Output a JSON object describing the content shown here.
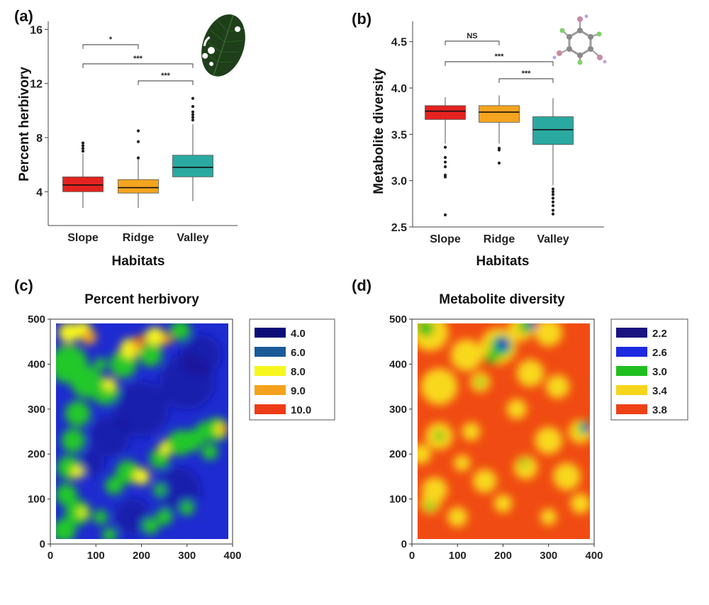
{
  "chart_data": [
    {
      "panel": "(a)",
      "type": "box",
      "title": "",
      "xlabel": "Habitats",
      "ylabel": "Percent herbivory",
      "ylim": [
        1.5,
        16.6
      ],
      "yticks": [
        4,
        8,
        12,
        16
      ],
      "categories": [
        "Slope",
        "Ridge",
        "Valley"
      ],
      "colors": [
        "#e42320",
        "#f4a41f",
        "#2aa9a0"
      ],
      "boxes": [
        {
          "name": "Slope",
          "whisker_low": 2.8,
          "q1": 4.0,
          "median": 4.5,
          "q3": 5.1,
          "whisker_high": 6.8,
          "outliers": [
            7.0,
            7.2,
            7.4,
            7.6
          ]
        },
        {
          "name": "Ridge",
          "whisker_low": 2.8,
          "q1": 3.9,
          "median": 4.3,
          "q3": 4.9,
          "whisker_high": 6.5,
          "outliers": [
            6.5,
            7.7,
            8.5
          ]
        },
        {
          "name": "Valley",
          "whisker_low": 3.3,
          "q1": 5.1,
          "median": 5.8,
          "q3": 6.7,
          "whisker_high": 9.0,
          "outliers": [
            9.3,
            9.5,
            9.7,
            9.9,
            10.3,
            10.9
          ]
        }
      ],
      "significance": [
        {
          "from": "Slope",
          "to": "Ridge",
          "label": "*"
        },
        {
          "from": "Slope",
          "to": "Valley",
          "label": "***"
        },
        {
          "from": "Ridge",
          "to": "Valley",
          "label": "***"
        }
      ]
    },
    {
      "panel": "(b)",
      "type": "box",
      "title": "",
      "xlabel": "Habitats",
      "ylabel": "Metabolite diversity",
      "ylim": [
        2.5,
        4.72
      ],
      "yticks": [
        2.5,
        3.0,
        3.5,
        4.0,
        4.5
      ],
      "categories": [
        "Slope",
        "Ridge",
        "Valley"
      ],
      "colors": [
        "#e42320",
        "#f4a41f",
        "#2aa9a0"
      ],
      "boxes": [
        {
          "name": "Slope",
          "whisker_low": 3.4,
          "q1": 3.66,
          "median": 3.75,
          "q3": 3.81,
          "whisker_high": 3.9,
          "outliers": [
            2.63,
            3.04,
            3.06,
            3.15,
            3.2,
            3.25,
            3.36
          ]
        },
        {
          "name": "Ridge",
          "whisker_low": 3.4,
          "q1": 3.63,
          "median": 3.74,
          "q3": 3.81,
          "whisker_high": 3.92,
          "outliers": [
            3.19,
            3.33,
            3.35
          ]
        },
        {
          "name": "Valley",
          "whisker_low": 2.95,
          "q1": 3.39,
          "median": 3.55,
          "q3": 3.69,
          "whisker_high": 3.89,
          "outliers": [
            2.64,
            2.68,
            2.73,
            2.77,
            2.81,
            2.85,
            2.88,
            2.91
          ]
        }
      ],
      "significance": [
        {
          "from": "Slope",
          "to": "Ridge",
          "label": "NS"
        },
        {
          "from": "Slope",
          "to": "Valley",
          "label": "***"
        },
        {
          "from": "Ridge",
          "to": "Valley",
          "label": "***"
        }
      ]
    },
    {
      "panel": "(c)",
      "type": "heatmap",
      "title": "Percent herbivory",
      "xlim": [
        0,
        400
      ],
      "ylim": [
        0,
        500
      ],
      "xticks": [
        0,
        100,
        200,
        300,
        400
      ],
      "yticks": [
        0,
        100,
        200,
        300,
        400,
        500
      ],
      "extent": {
        "x": [
          10,
          385
        ],
        "y": [
          10,
          490
        ]
      },
      "background": "#1e2bd0",
      "legend": [
        {
          "label": "4.0",
          "color": "#0d0d78"
        },
        {
          "label": "6.0",
          "color": "#1a5a99"
        },
        {
          "label": "8.0",
          "color": "#f6f71e"
        },
        {
          "label": "9.0",
          "color": "#f4a11d"
        },
        {
          "label": "10.0",
          "color": "#ee3c16"
        }
      ],
      "blobs": [
        {
          "x": 40,
          "y": 400,
          "r": 42,
          "v": "green"
        },
        {
          "x": 40,
          "y": 470,
          "r": 22,
          "v": "yellow"
        },
        {
          "x": 70,
          "y": 475,
          "r": 20,
          "v": "yellow"
        },
        {
          "x": 85,
          "y": 460,
          "r": 16,
          "v": "orange"
        },
        {
          "x": 80,
          "y": 360,
          "r": 35,
          "v": "green"
        },
        {
          "x": 120,
          "y": 340,
          "r": 30,
          "v": "green"
        },
        {
          "x": 130,
          "y": 355,
          "r": 14,
          "v": "yellow"
        },
        {
          "x": 160,
          "y": 400,
          "r": 30,
          "v": "green"
        },
        {
          "x": 175,
          "y": 435,
          "r": 22,
          "v": "yellow"
        },
        {
          "x": 190,
          "y": 445,
          "r": 14,
          "v": "orange"
        },
        {
          "x": 200,
          "y": 455,
          "r": 10,
          "v": "red"
        },
        {
          "x": 230,
          "y": 460,
          "r": 22,
          "v": "yellow"
        },
        {
          "x": 255,
          "y": 455,
          "r": 12,
          "v": "orange"
        },
        {
          "x": 220,
          "y": 420,
          "r": 25,
          "v": "green"
        },
        {
          "x": 285,
          "y": 475,
          "r": 22,
          "v": "green"
        },
        {
          "x": 60,
          "y": 290,
          "r": 28,
          "v": "green"
        },
        {
          "x": 50,
          "y": 230,
          "r": 26,
          "v": "green"
        },
        {
          "x": 40,
          "y": 170,
          "r": 26,
          "v": "green"
        },
        {
          "x": 60,
          "y": 160,
          "r": 14,
          "v": "yellow"
        },
        {
          "x": 35,
          "y": 110,
          "r": 24,
          "v": "green"
        },
        {
          "x": 60,
          "y": 70,
          "r": 28,
          "v": "green"
        },
        {
          "x": 70,
          "y": 70,
          "r": 10,
          "v": "yellow"
        },
        {
          "x": 30,
          "y": 30,
          "r": 26,
          "v": "green"
        },
        {
          "x": 140,
          "y": 130,
          "r": 20,
          "v": "green"
        },
        {
          "x": 170,
          "y": 160,
          "r": 26,
          "v": "green"
        },
        {
          "x": 200,
          "y": 150,
          "r": 18,
          "v": "yellow"
        },
        {
          "x": 240,
          "y": 190,
          "r": 22,
          "v": "green"
        },
        {
          "x": 255,
          "y": 215,
          "r": 16,
          "v": "yellow"
        },
        {
          "x": 285,
          "y": 225,
          "r": 28,
          "v": "green"
        },
        {
          "x": 310,
          "y": 230,
          "r": 24,
          "v": "green"
        },
        {
          "x": 340,
          "y": 250,
          "r": 22,
          "v": "green"
        },
        {
          "x": 365,
          "y": 255,
          "r": 26,
          "v": "green"
        },
        {
          "x": 375,
          "y": 255,
          "r": 14,
          "v": "yellow"
        },
        {
          "x": 380,
          "y": 255,
          "r": 9,
          "v": "orange"
        },
        {
          "x": 383,
          "y": 252,
          "r": 6,
          "v": "red"
        },
        {
          "x": 350,
          "y": 205,
          "r": 18,
          "v": "green"
        },
        {
          "x": 110,
          "y": 60,
          "r": 16,
          "v": "green"
        },
        {
          "x": 250,
          "y": 60,
          "r": 18,
          "v": "green"
        },
        {
          "x": 300,
          "y": 80,
          "r": 16,
          "v": "green"
        },
        {
          "x": 220,
          "y": 40,
          "r": 18,
          "v": "green"
        },
        {
          "x": 240,
          "y": 120,
          "r": 14,
          "v": "green"
        },
        {
          "x": 130,
          "y": 20,
          "r": 16,
          "v": "green"
        },
        {
          "x": 110,
          "y": 400,
          "r": 14,
          "v": "green"
        }
      ],
      "dark": [
        {
          "x": 200,
          "y": 300,
          "r": 60
        },
        {
          "x": 300,
          "y": 360,
          "r": 60
        },
        {
          "x": 130,
          "y": 240,
          "r": 45
        },
        {
          "x": 280,
          "y": 120,
          "r": 50
        },
        {
          "x": 180,
          "y": 60,
          "r": 40
        },
        {
          "x": 330,
          "y": 420,
          "r": 45
        },
        {
          "x": 90,
          "y": 180,
          "r": 28
        }
      ]
    },
    {
      "panel": "(d)",
      "type": "heatmap",
      "title": "Metabolite diversity",
      "xlim": [
        0,
        400
      ],
      "ylim": [
        0,
        500
      ],
      "xticks": [
        0,
        100,
        200,
        300,
        400
      ],
      "yticks": [
        0,
        100,
        200,
        300,
        400,
        500
      ],
      "extent": {
        "x": [
          10,
          385
        ],
        "y": [
          10,
          490
        ]
      },
      "background": "#f04b12",
      "legend": [
        {
          "label": "2.2",
          "color": "#1a1480"
        },
        {
          "label": "2.6",
          "color": "#1c2ae0"
        },
        {
          "label": "3.0",
          "color": "#1fbf1f"
        },
        {
          "label": "3.4",
          "color": "#f5d61c"
        },
        {
          "label": "3.8",
          "color": "#ee4116"
        }
      ],
      "blobs": [
        {
          "x": 40,
          "y": 470,
          "r": 40,
          "v": "yellow"
        },
        {
          "x": 30,
          "y": 480,
          "r": 18,
          "v": "green"
        },
        {
          "x": 60,
          "y": 350,
          "r": 40,
          "v": "yellow"
        },
        {
          "x": 120,
          "y": 420,
          "r": 35,
          "v": "yellow"
        },
        {
          "x": 190,
          "y": 440,
          "r": 40,
          "v": "yellow"
        },
        {
          "x": 195,
          "y": 440,
          "r": 24,
          "v": "green"
        },
        {
          "x": 200,
          "y": 445,
          "r": 14,
          "v": "blue"
        },
        {
          "x": 203,
          "y": 448,
          "r": 7,
          "v": "navy"
        },
        {
          "x": 175,
          "y": 415,
          "r": 14,
          "v": "green"
        },
        {
          "x": 240,
          "y": 480,
          "r": 28,
          "v": "yellow"
        },
        {
          "x": 250,
          "y": 485,
          "r": 16,
          "v": "green"
        },
        {
          "x": 265,
          "y": 488,
          "r": 9,
          "v": "blue"
        },
        {
          "x": 300,
          "y": 470,
          "r": 30,
          "v": "yellow"
        },
        {
          "x": 150,
          "y": 360,
          "r": 22,
          "v": "yellow"
        },
        {
          "x": 150,
          "y": 360,
          "r": 8,
          "v": "green"
        },
        {
          "x": 60,
          "y": 240,
          "r": 30,
          "v": "yellow"
        },
        {
          "x": 60,
          "y": 240,
          "r": 10,
          "v": "green"
        },
        {
          "x": 50,
          "y": 120,
          "r": 28,
          "v": "yellow"
        },
        {
          "x": 40,
          "y": 90,
          "r": 22,
          "v": "yellow"
        },
        {
          "x": 40,
          "y": 85,
          "r": 9,
          "v": "green"
        },
        {
          "x": 100,
          "y": 60,
          "r": 22,
          "v": "yellow"
        },
        {
          "x": 160,
          "y": 140,
          "r": 26,
          "v": "yellow"
        },
        {
          "x": 250,
          "y": 170,
          "r": 26,
          "v": "yellow"
        },
        {
          "x": 245,
          "y": 180,
          "r": 8,
          "v": "green"
        },
        {
          "x": 300,
          "y": 230,
          "r": 30,
          "v": "yellow"
        },
        {
          "x": 370,
          "y": 250,
          "r": 26,
          "v": "yellow"
        },
        {
          "x": 378,
          "y": 258,
          "r": 14,
          "v": "green"
        },
        {
          "x": 383,
          "y": 258,
          "r": 8,
          "v": "blue"
        },
        {
          "x": 340,
          "y": 150,
          "r": 30,
          "v": "yellow"
        },
        {
          "x": 370,
          "y": 90,
          "r": 22,
          "v": "yellow"
        },
        {
          "x": 260,
          "y": 380,
          "r": 30,
          "v": "yellow"
        },
        {
          "x": 320,
          "y": 350,
          "r": 26,
          "v": "yellow"
        },
        {
          "x": 230,
          "y": 300,
          "r": 22,
          "v": "yellow"
        },
        {
          "x": 130,
          "y": 250,
          "r": 20,
          "v": "yellow"
        },
        {
          "x": 200,
          "y": 90,
          "r": 20,
          "v": "yellow"
        },
        {
          "x": 300,
          "y": 60,
          "r": 18,
          "v": "yellow"
        },
        {
          "x": 20,
          "y": 200,
          "r": 22,
          "v": "yellow"
        },
        {
          "x": 110,
          "y": 180,
          "r": 18,
          "v": "yellow"
        }
      ],
      "dark": []
    }
  ],
  "axes_text": {
    "panel_labels": [
      "(a)",
      "(b)",
      "(c)",
      "(d)"
    ]
  },
  "colors": {
    "green": "#22c72a",
    "yellow": "#f6f61e",
    "orange": "#f5a21b",
    "red": "#ee3915",
    "navy": "#15127a",
    "blue": "#1d2be0",
    "dark_herbivory": "#1a1290",
    "d_yellow": "#f8d81c",
    "d_green": "#1fbf1f"
  }
}
